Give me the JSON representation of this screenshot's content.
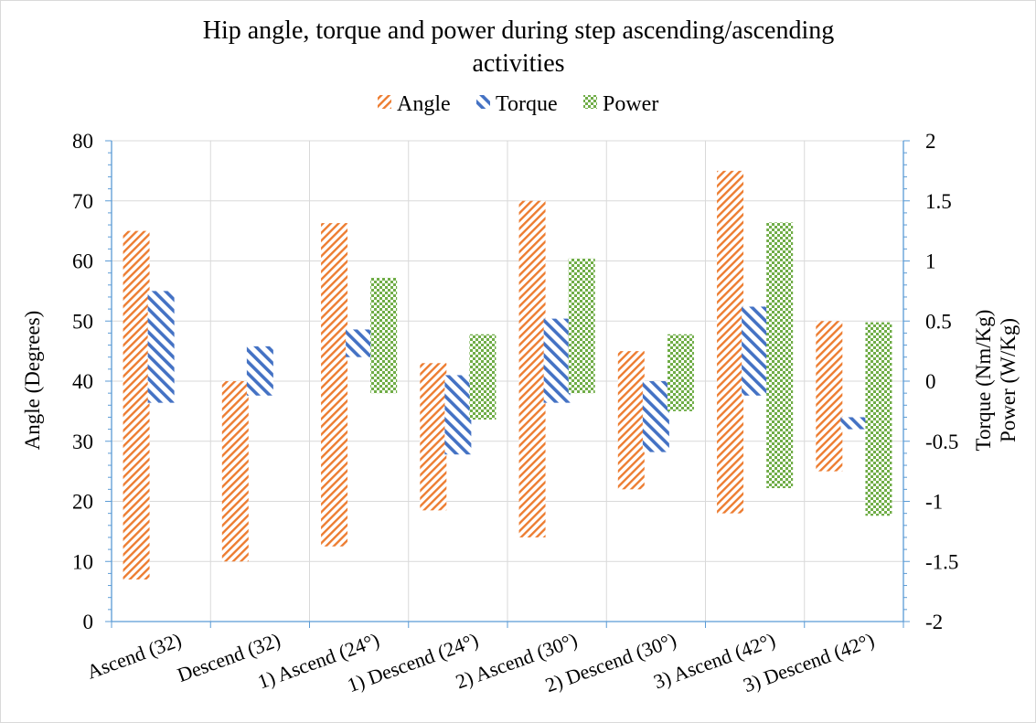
{
  "chart_data": {
    "type": "bar",
    "subtype": "floating-range",
    "title_lines": [
      "Hip  angle, torque and power during  step ascending/ascending",
      "activities"
    ],
    "categories": [
      "Ascend (32)",
      "Descend (32)",
      "1) Ascend (24°)",
      "1) Descend (24°)",
      "2) Ascend (30°)",
      "2) Descend (30°)",
      "3) Ascend (42°)",
      "3) Descend (42°)"
    ],
    "legend": {
      "position": "top",
      "entries": [
        "Angle",
        "Torque",
        "Power"
      ]
    },
    "y_left": {
      "label": "Angle (Degrees)",
      "range": [
        0,
        80
      ],
      "ticks": [
        "0",
        "10",
        "20",
        "30",
        "40",
        "50",
        "60",
        "70",
        "80"
      ]
    },
    "y_right": {
      "label_lines": [
        "Torque (Nm/Kg)",
        "Power (W/Kg)"
      ],
      "range": [
        -2,
        2
      ],
      "ticks": [
        "-2",
        "-1.5",
        "-1",
        "-0.5",
        "0",
        "0.5",
        "1",
        "1.5",
        "2"
      ]
    },
    "grid": true,
    "series": [
      {
        "name": "Angle",
        "axis": "left",
        "color": "#ED7D31",
        "pattern": "diagonal-up",
        "ranges": [
          [
            7,
            65
          ],
          [
            10,
            40
          ],
          [
            12.5,
            66.3
          ],
          [
            18.5,
            43
          ],
          [
            14,
            70
          ],
          [
            22,
            45
          ],
          [
            18,
            75
          ],
          [
            25,
            50
          ]
        ]
      },
      {
        "name": "Torque",
        "axis": "right",
        "color": "#4472C4",
        "pattern": "diagonal-down",
        "ranges": [
          [
            -0.18,
            0.75
          ],
          [
            -0.12,
            0.29
          ],
          [
            0.2,
            0.43
          ],
          [
            -0.61,
            0.05
          ],
          [
            -0.18,
            0.52
          ],
          [
            -0.59,
            0.0
          ],
          [
            -0.12,
            0.62
          ],
          [
            -0.4,
            -0.3
          ]
        ]
      },
      {
        "name": "Power",
        "axis": "right",
        "color": "#70AD47",
        "pattern": "checker",
        "ranges": [
          null,
          null,
          [
            -0.1,
            0.86
          ],
          [
            -0.32,
            0.39
          ],
          [
            -0.1,
            1.02
          ],
          [
            -0.25,
            0.39
          ],
          [
            -0.89,
            1.32
          ],
          [
            -1.12,
            0.49
          ]
        ]
      }
    ]
  }
}
